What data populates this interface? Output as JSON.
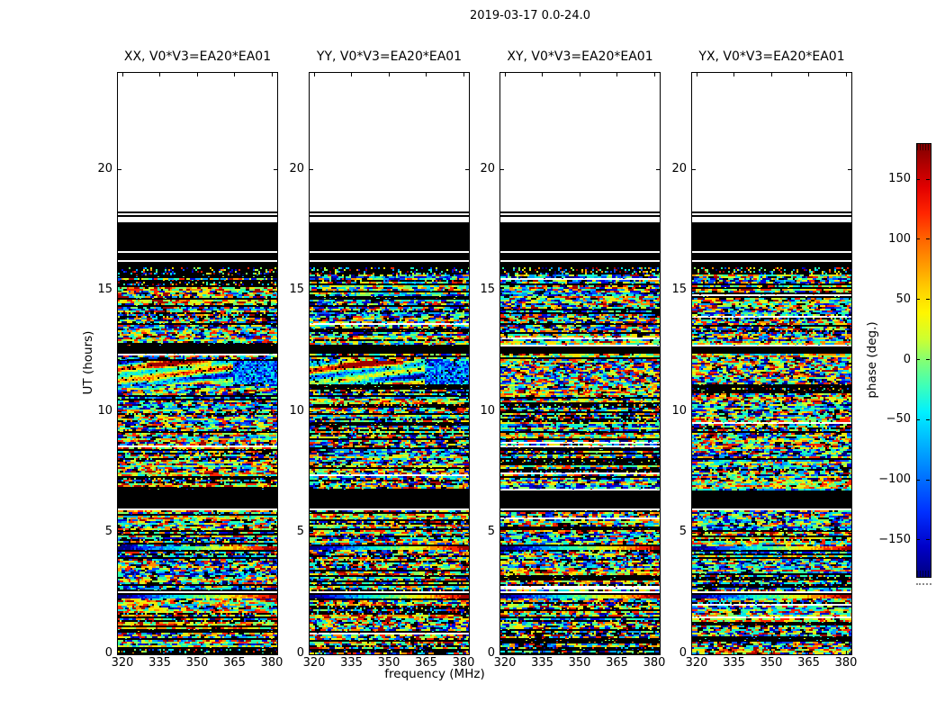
{
  "chart_data": {
    "type": "heatmap",
    "suptitle": "2019-03-17 0.0-24.0",
    "xlabel": "frequency (MHz)",
    "ylabel": "UT (hours)",
    "x_ticks": [
      320,
      335,
      350,
      365,
      380
    ],
    "y_ticks": [
      0,
      5,
      10,
      15,
      20
    ],
    "xlim": [
      318.5,
      385.0
    ],
    "ylim": [
      0,
      24
    ],
    "grid": false,
    "panels": [
      {
        "title": "XX, V0*V3=EA20*EA01",
        "seed": 11,
        "streak": true
      },
      {
        "title": "YY, V0*V3=EA20*EA01",
        "seed": 29,
        "streak": true
      },
      {
        "title": "XY, V0*V3=EA20*EA01",
        "seed": 47,
        "streak": false
      },
      {
        "title": "YX, V0*V3=EA20*EA01",
        "seed": 83,
        "streak": false
      }
    ],
    "colorbar": {
      "label": "phase (deg.)",
      "ticks": [
        150,
        100,
        50,
        0,
        -50,
        -100,
        -150
      ],
      "range": [
        -180,
        180
      ],
      "colormap": "jet"
    },
    "palette": [
      "#000080",
      "#0000d8",
      "#0048ff",
      "#00a2ff",
      "#00e8e8",
      "#2affa8",
      "#80ff62",
      "#d2ff24",
      "#ffdf00",
      "#ff8c00",
      "#ff2400",
      "#a00000"
    ],
    "bands": [
      {
        "from": 24.0,
        "to": 18.25,
        "type": "white"
      },
      {
        "from": 18.25,
        "to": 18.18,
        "type": "black"
      },
      {
        "from": 18.18,
        "to": 18.12,
        "type": "white"
      },
      {
        "from": 18.12,
        "to": 18.05,
        "type": "black"
      },
      {
        "from": 18.05,
        "to": 17.85,
        "type": "white"
      },
      {
        "from": 17.85,
        "to": 17.42,
        "type": "black"
      },
      {
        "from": 17.42,
        "to": 17.36,
        "type": "white"
      },
      {
        "from": 17.36,
        "to": 16.68,
        "type": "black"
      },
      {
        "from": 16.68,
        "to": 16.58,
        "type": "white"
      },
      {
        "from": 16.58,
        "to": 16.3,
        "type": "black"
      },
      {
        "from": 16.3,
        "to": 16.22,
        "type": "white"
      },
      {
        "from": 16.22,
        "to": 15.95,
        "type": "black"
      },
      {
        "from": 15.95,
        "to": 15.7,
        "type": "sparse"
      },
      {
        "from": 15.7,
        "to": 12.7,
        "type": "noise"
      },
      {
        "from": 12.7,
        "to": 12.42,
        "type": "black"
      },
      {
        "from": 12.42,
        "to": 12.1,
        "type": "noise"
      },
      {
        "from": 12.1,
        "to": 11.15,
        "type": "streak"
      },
      {
        "from": 11.15,
        "to": 6.78,
        "type": "noise"
      },
      {
        "from": 6.78,
        "to": 6.08,
        "type": "black"
      },
      {
        "from": 6.08,
        "to": 5.95,
        "type": "lines"
      },
      {
        "from": 5.95,
        "to": 4.45,
        "type": "noise"
      },
      {
        "from": 4.45,
        "to": 4.28,
        "type": "gradline"
      },
      {
        "from": 4.28,
        "to": 2.62,
        "type": "noise"
      },
      {
        "from": 2.62,
        "to": 2.42,
        "type": "lines"
      },
      {
        "from": 2.42,
        "to": 2.28,
        "type": "gradline"
      },
      {
        "from": 2.28,
        "to": 0.0,
        "type": "noise"
      }
    ]
  }
}
